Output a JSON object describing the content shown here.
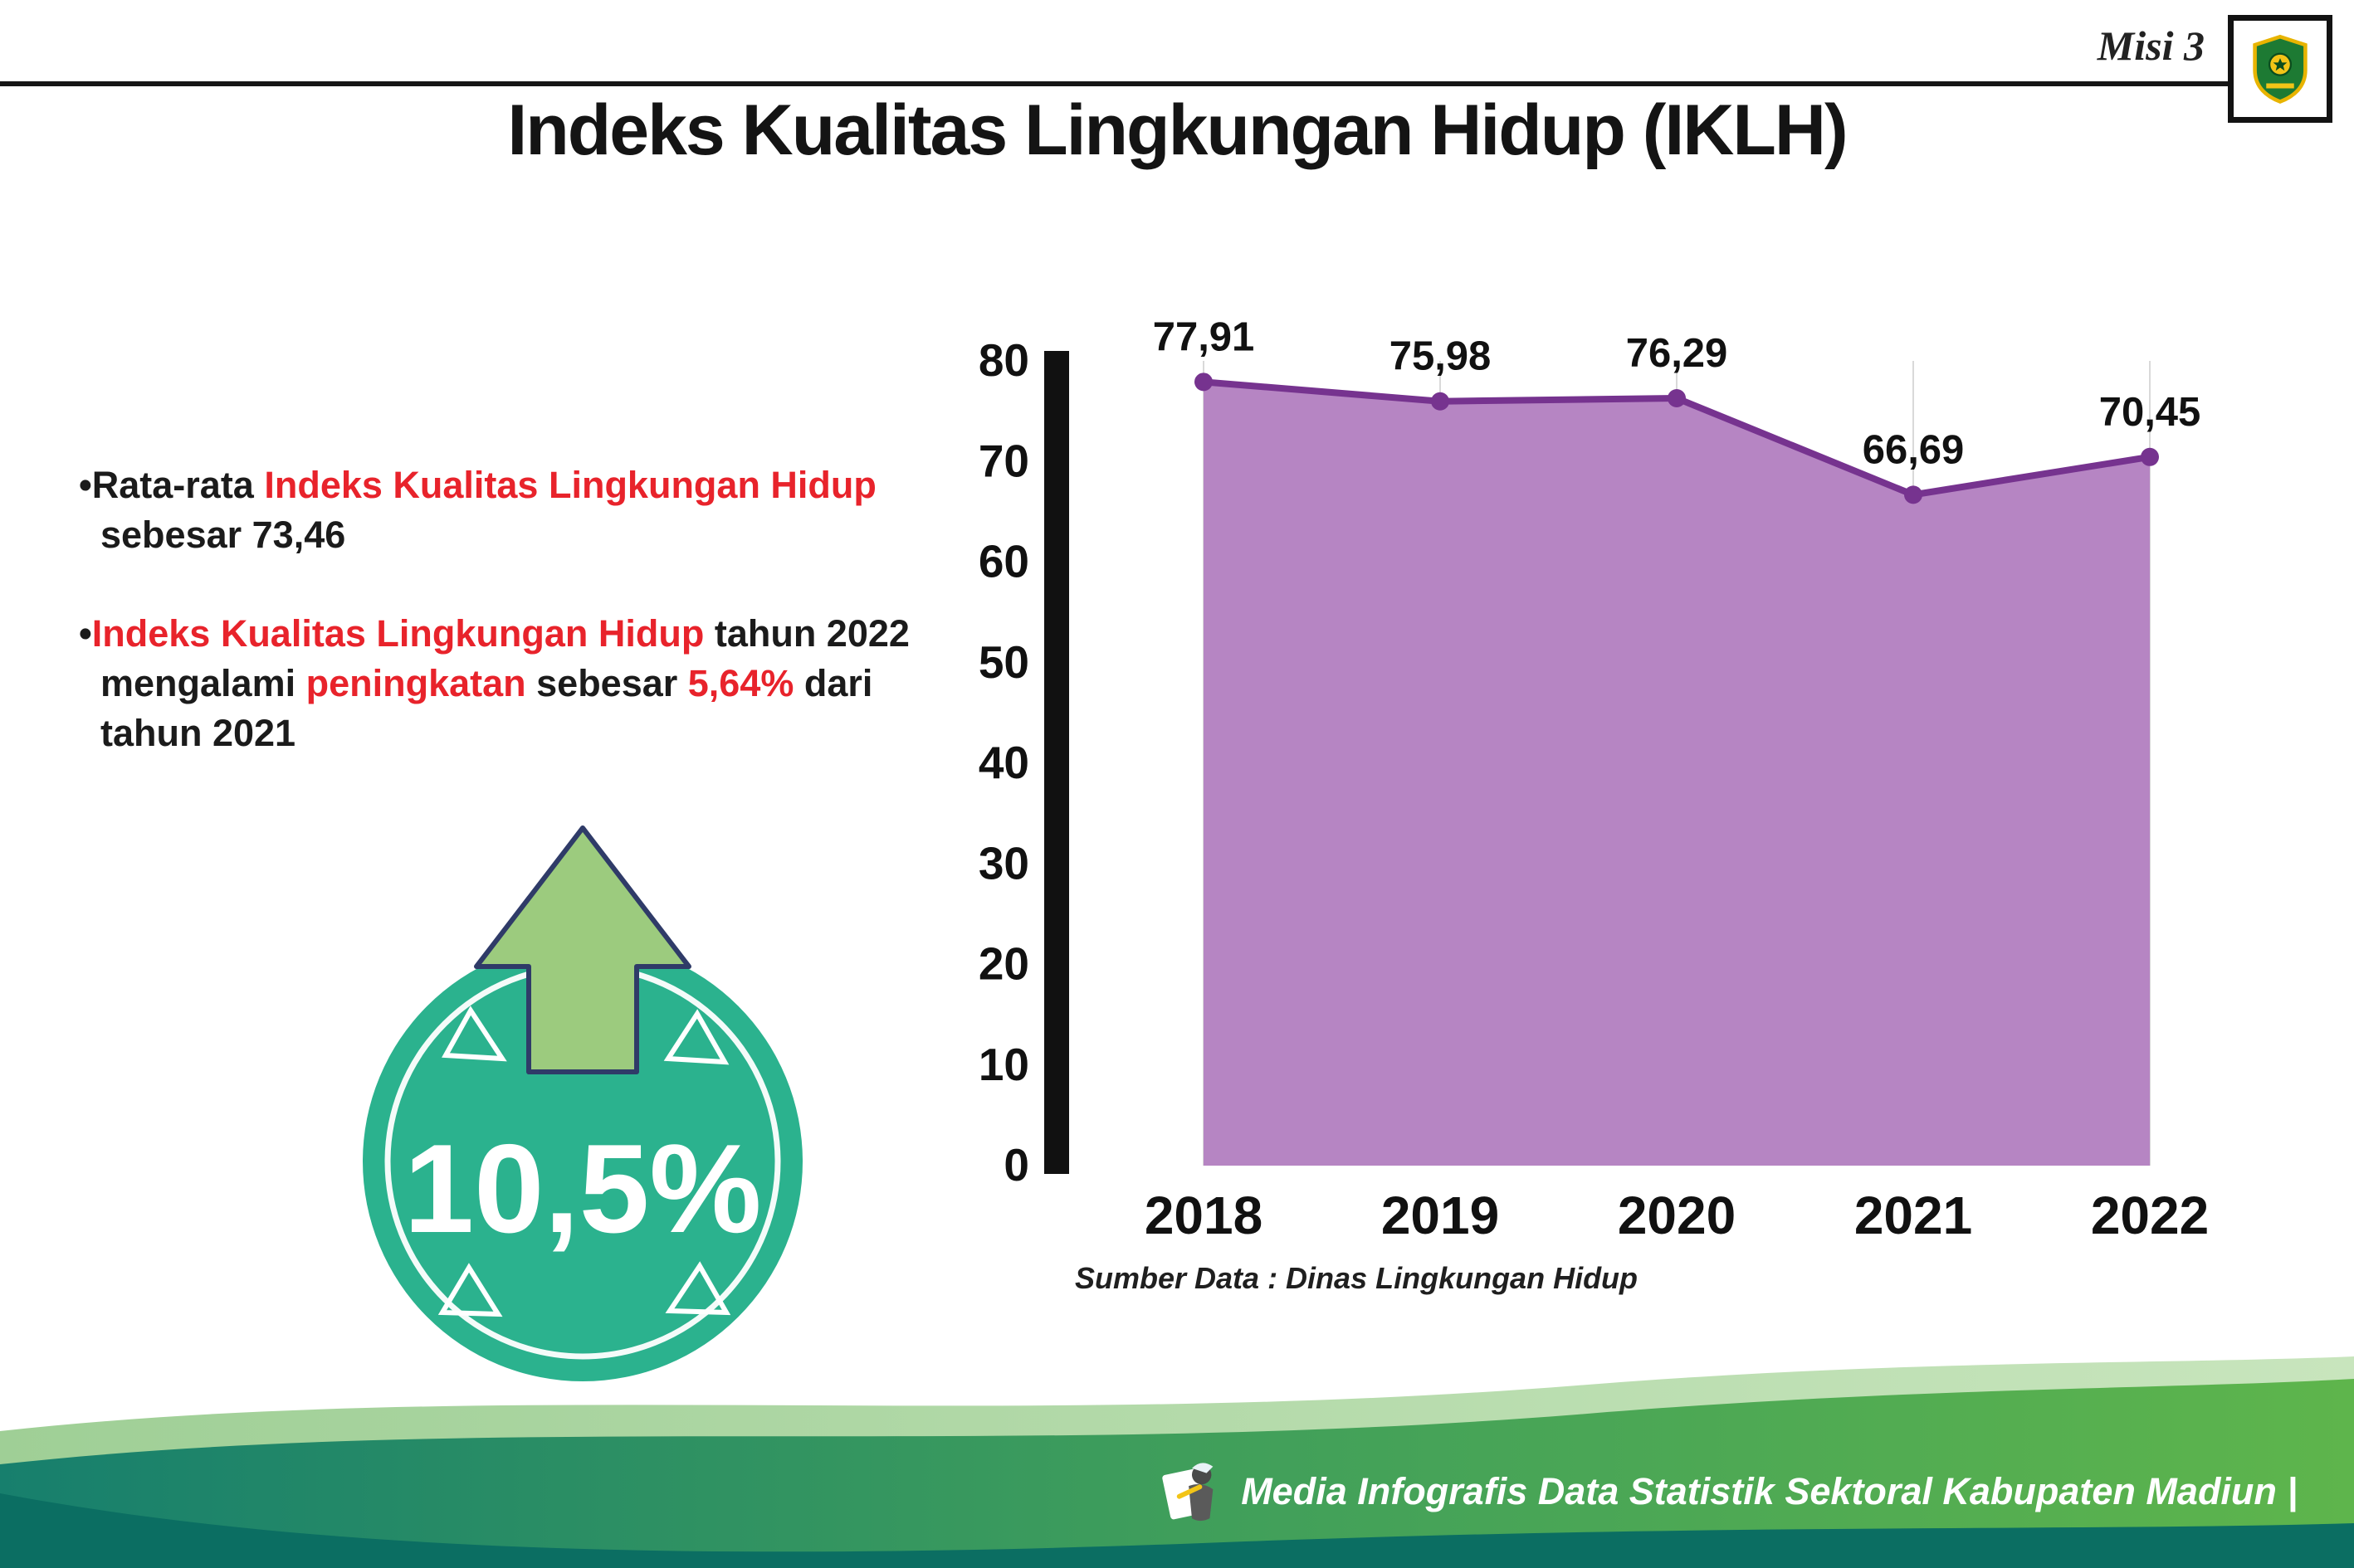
{
  "header": {
    "misi_label": "Misi 3"
  },
  "title": "Indeks Kualitas Lingkungan Hidup (IKLH)",
  "bullets": {
    "b1": {
      "bullet": "•",
      "t0": "Rata-rata ",
      "red": "Indeks Kualitas Lingkungan Hidup",
      "t1": " sebesar 73,46"
    },
    "b2": {
      "bullet": "•",
      "red1": "Indeks Kualitas Lingkungan Hidup",
      "t1": " tahun 2022 mengalami ",
      "red2": "peningkatan",
      "t2": " sebesar ",
      "red3": "5,64%",
      "t3": " dari tahun 2021"
    }
  },
  "badge": {
    "value": "10,5%"
  },
  "chart_data": {
    "type": "area",
    "categories": [
      "2018",
      "2019",
      "2020",
      "2021",
      "2022"
    ],
    "values": [
      77.91,
      75.98,
      76.29,
      66.69,
      70.45
    ],
    "value_labels": [
      "77,91",
      "75,98",
      "76,29",
      "66,69",
      "70,45"
    ],
    "ylim": [
      0,
      80
    ],
    "ytick_step": 10,
    "grid": "vertical",
    "legend": "none",
    "source": "Sumber Data : Dinas Lingkungan Hidup",
    "colors": {
      "fill": "#b685c3",
      "line": "#76338f",
      "point": "#76338f",
      "axis": "#111111",
      "grid": "#d9d9d9",
      "label": "#111111"
    }
  },
  "footer": {
    "credit": "Media Infografis Data Statistik Sektoral Kabupaten Madiun |"
  },
  "colors": {
    "accent_red": "#e8232b",
    "badge_teal": "#2bb28e",
    "badge_arrow_green": "#9ccb7e",
    "footer_dark_teal": "#0b6e62",
    "footer_green": "#5eb54c"
  }
}
